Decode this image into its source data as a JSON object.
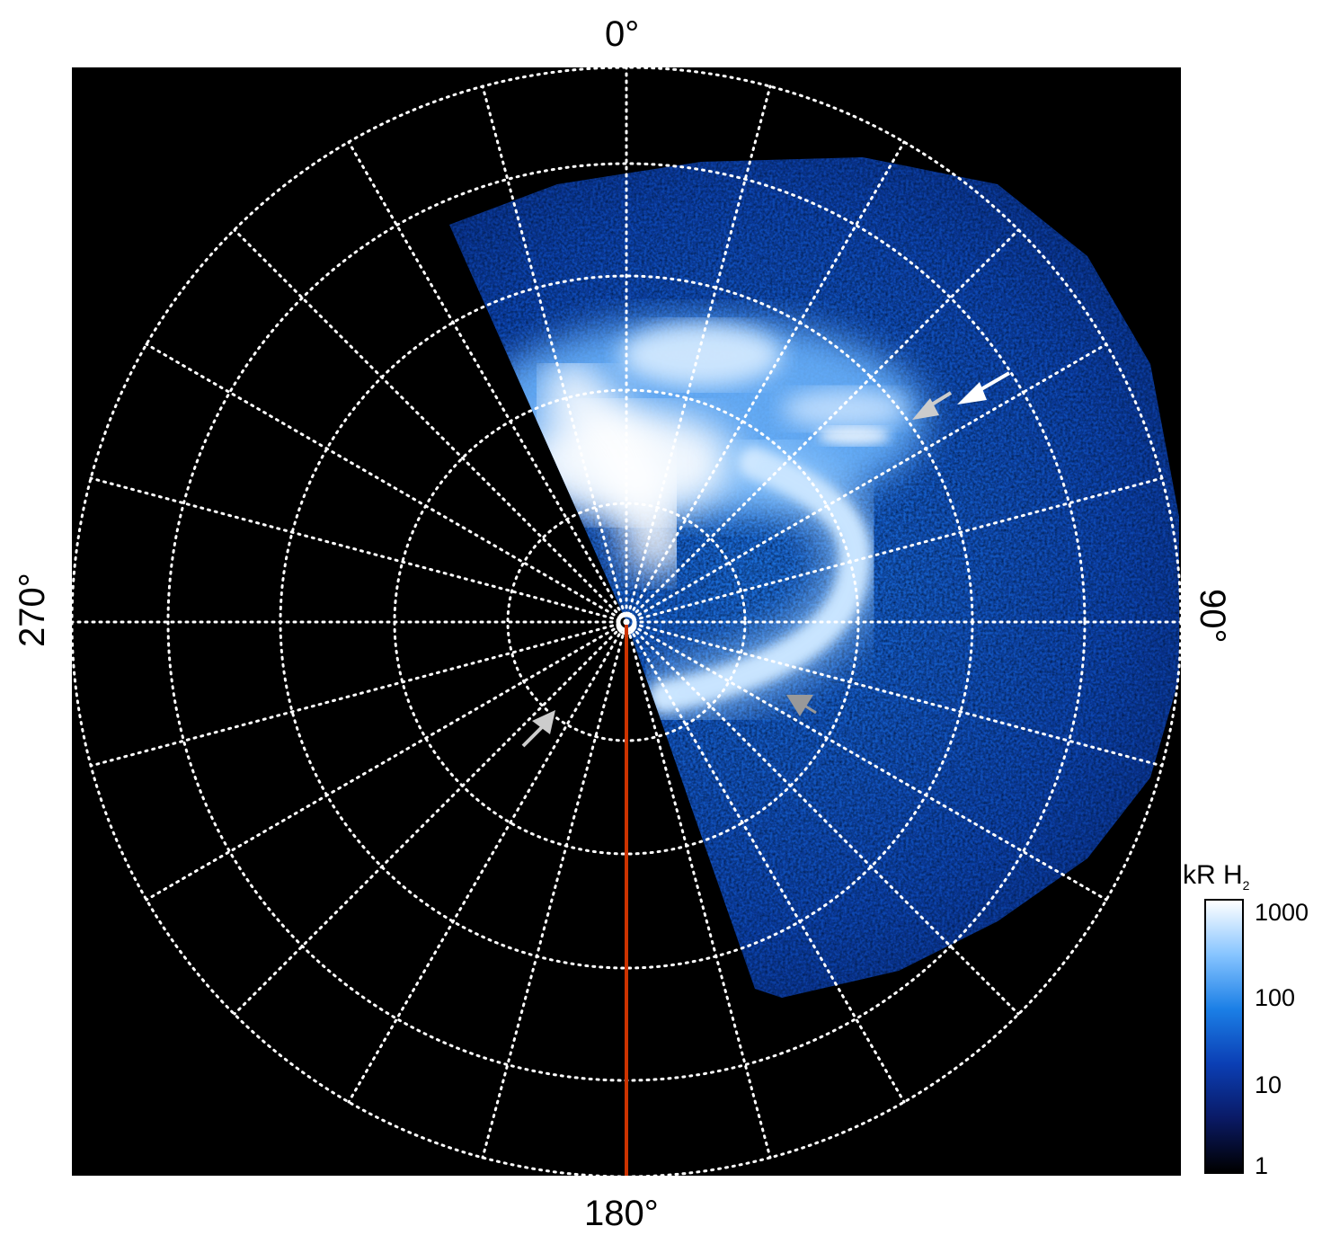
{
  "figure": {
    "labels": {
      "top": "0°",
      "right": "90°",
      "bottom": "180°",
      "left": "270°"
    },
    "colorbar": {
      "title_main": "kR H",
      "title_sub": "2",
      "tick_labels": [
        "1000",
        "100",
        "10",
        "1"
      ],
      "scale": "log",
      "colors": [
        "#000000",
        "#0a1a66",
        "#0b3fb5",
        "#1b7fe6",
        "#86c4ff",
        "#ffffff"
      ]
    },
    "image": {
      "description": "",
      "meridian_line_color": "#cc3300",
      "grid_color": "#ffffff"
    },
    "annotations": {
      "arrow_colors": {
        "white": "#ffffff",
        "light_gray": "#cccccc",
        "gray": "#999999"
      }
    }
  }
}
